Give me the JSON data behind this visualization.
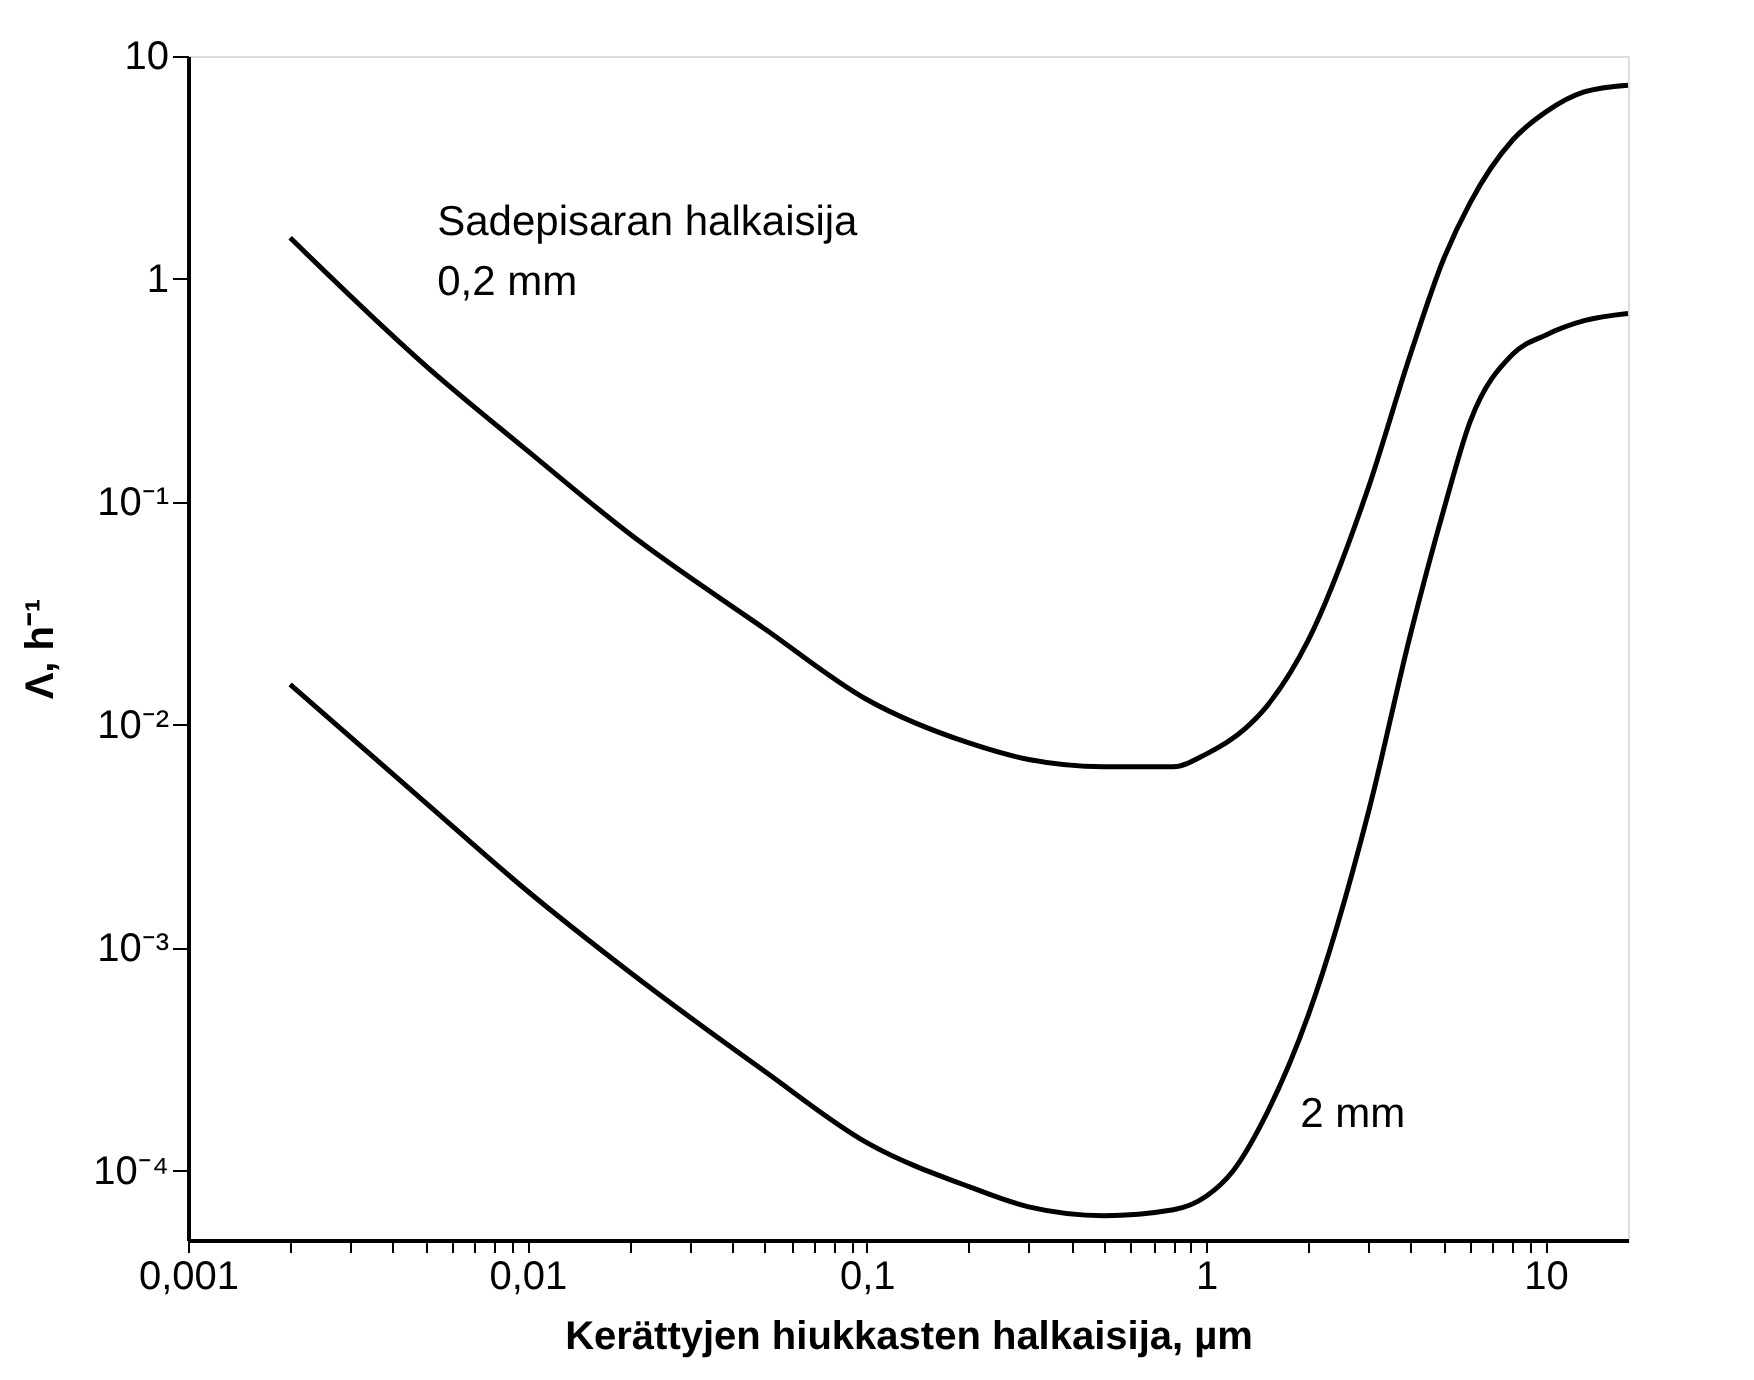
{
  "chart_data": {
    "type": "line",
    "xlabel": "Kerättyjen hiukkasten halkaisija, µm",
    "ylabel": "Λ, h⁻¹",
    "log": "xy",
    "grid": false,
    "legend": false,
    "marker": "none",
    "line_style": "solid",
    "xlim": [
      0.001,
      17.5
    ],
    "ylim": [
      4.9e-05,
      10
    ],
    "xticks": [
      {
        "value": 0.001,
        "label": "0,001"
      },
      {
        "value": 0.002,
        "label": null
      },
      {
        "value": 0.003,
        "label": null
      },
      {
        "value": 0.004,
        "label": null
      },
      {
        "value": 0.005,
        "label": null
      },
      {
        "value": 0.006,
        "label": null
      },
      {
        "value": 0.007,
        "label": null
      },
      {
        "value": 0.008,
        "label": null
      },
      {
        "value": 0.009,
        "label": null
      },
      {
        "value": 0.01,
        "label": "0,01"
      },
      {
        "value": 0.02,
        "label": null
      },
      {
        "value": 0.03,
        "label": null
      },
      {
        "value": 0.04,
        "label": null
      },
      {
        "value": 0.05,
        "label": null
      },
      {
        "value": 0.06,
        "label": null
      },
      {
        "value": 0.07,
        "label": null
      },
      {
        "value": 0.08,
        "label": null
      },
      {
        "value": 0.09,
        "label": null
      },
      {
        "value": 0.1,
        "label": "0,1"
      },
      {
        "value": 0.2,
        "label": null
      },
      {
        "value": 0.3,
        "label": null
      },
      {
        "value": 0.4,
        "label": null
      },
      {
        "value": 0.5,
        "label": null
      },
      {
        "value": 0.6,
        "label": null
      },
      {
        "value": 0.7,
        "label": null
      },
      {
        "value": 0.8,
        "label": null
      },
      {
        "value": 0.9,
        "label": null
      },
      1,
      {
        "value": 2,
        "label": null
      },
      {
        "value": 3,
        "label": null
      },
      {
        "value": 4,
        "label": null
      },
      {
        "value": 5,
        "label": null
      },
      {
        "value": 6,
        "label": null
      },
      {
        "value": 7,
        "label": null
      },
      {
        "value": 8,
        "label": null
      },
      {
        "value": 9,
        "label": null
      },
      10
    ],
    "yticks": [
      {
        "value": 0.0001,
        "label": "10⁻⁴"
      },
      {
        "value": 0.001,
        "label": "10⁻³"
      },
      {
        "value": 0.01,
        "label": "10⁻²"
      },
      {
        "value": 0.1,
        "label": "10⁻¹"
      },
      1,
      10
    ],
    "series": [
      {
        "name": "0,2 mm",
        "color": "#000000",
        "x": [
          0.002,
          0.005,
          0.01,
          0.02,
          0.05,
          0.1,
          0.2,
          0.3,
          0.5,
          0.8,
          1,
          1.3,
          1.5,
          2,
          3,
          4,
          5,
          6,
          8,
          10,
          13,
          17.5
        ],
        "values": [
          1.53,
          0.41,
          0.17,
          0.072,
          0.027,
          0.013,
          0.0083,
          0.007,
          0.0065,
          0.0065,
          0.0074,
          0.0096,
          0.012,
          0.024,
          0.115,
          0.46,
          1.22,
          2.2,
          4.2,
          5.6,
          6.9,
          7.4
        ]
      },
      {
        "name": "2 mm",
        "color": "#000000",
        "x": [
          0.002,
          0.005,
          0.01,
          0.02,
          0.05,
          0.1,
          0.2,
          0.3,
          0.5,
          0.8,
          1,
          1.2,
          1.5,
          2,
          3,
          4,
          5,
          6,
          8,
          10,
          13,
          17.5
        ],
        "values": [
          0.0152,
          0.0045,
          0.0018,
          0.00078,
          0.00028,
          0.000134,
          8.5e-05,
          6.9e-05,
          6.3e-05,
          6.7e-05,
          7.7e-05,
          0.0001,
          0.000178,
          0.0005,
          0.004,
          0.0255,
          0.091,
          0.23,
          0.46,
          0.56,
          0.65,
          0.7
        ]
      }
    ],
    "annotations": [
      "Sadepisaran halkaisija"
    ]
  }
}
